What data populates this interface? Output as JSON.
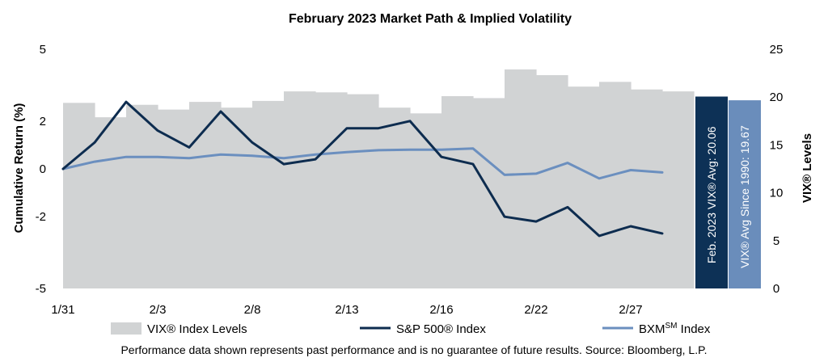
{
  "chart_data": {
    "type": "line",
    "title": "February 2023 Market Path & Implied Volatility",
    "ylabel_left": "Cumulative Return (%)",
    "ylabel_right": "VIX® Levels",
    "ylim_left": [
      -5,
      5
    ],
    "ylim_right": [
      0,
      25
    ],
    "yticks_left": [
      "5",
      "2",
      "0",
      "-2",
      "-5"
    ],
    "yticks_right": [
      "25",
      "20",
      "15",
      "10",
      "5",
      "0"
    ],
    "x_labels": [
      "1/31",
      "2/3",
      "2/8",
      "2/13",
      "2/16",
      "2/22",
      "2/27"
    ],
    "vix_bars": {
      "name": "VIX® Index Levels",
      "values": [
        19.4,
        17.9,
        19.2,
        18.7,
        19.5,
        18.9,
        19.6,
        20.6,
        20.5,
        20.3,
        18.9,
        18.3,
        20.1,
        19.9,
        22.9,
        22.3,
        21.1,
        21.6,
        20.8,
        20.6
      ]
    },
    "series": [
      {
        "name": "S&P 500® Index",
        "values": [
          0.0,
          1.1,
          2.8,
          1.6,
          0.9,
          2.4,
          1.1,
          0.2,
          0.4,
          1.7,
          1.7,
          2.0,
          0.5,
          0.2,
          -2.0,
          -2.2,
          -1.6,
          -2.8,
          -2.4,
          -2.7
        ]
      },
      {
        "name": "BXM",
        "name_sup": "SM",
        "name_suffix": " Index",
        "values": [
          0.0,
          0.3,
          0.5,
          0.5,
          0.45,
          0.6,
          0.55,
          0.45,
          0.6,
          0.7,
          0.78,
          0.8,
          0.8,
          0.85,
          -0.25,
          -0.2,
          0.25,
          -0.4,
          -0.05,
          -0.15
        ]
      }
    ],
    "avg_bars": [
      {
        "text": "Feb. 2023 VIX® Avg: 20.06",
        "value": 20.06
      },
      {
        "text": "VIX® Avg Since 1990: 19.67",
        "value": 19.67
      }
    ],
    "footnote": "Performance data shown represents past performance and is no guarantee of future results. Source: Bloomberg, L.P."
  },
  "colors": {
    "vix_bar": "#d1d3d4",
    "sp500": "#0d2c4f",
    "bxm": "#6b8fbf",
    "avg_feb": "#0d3156",
    "avg_1990": "#6a8dbb"
  }
}
